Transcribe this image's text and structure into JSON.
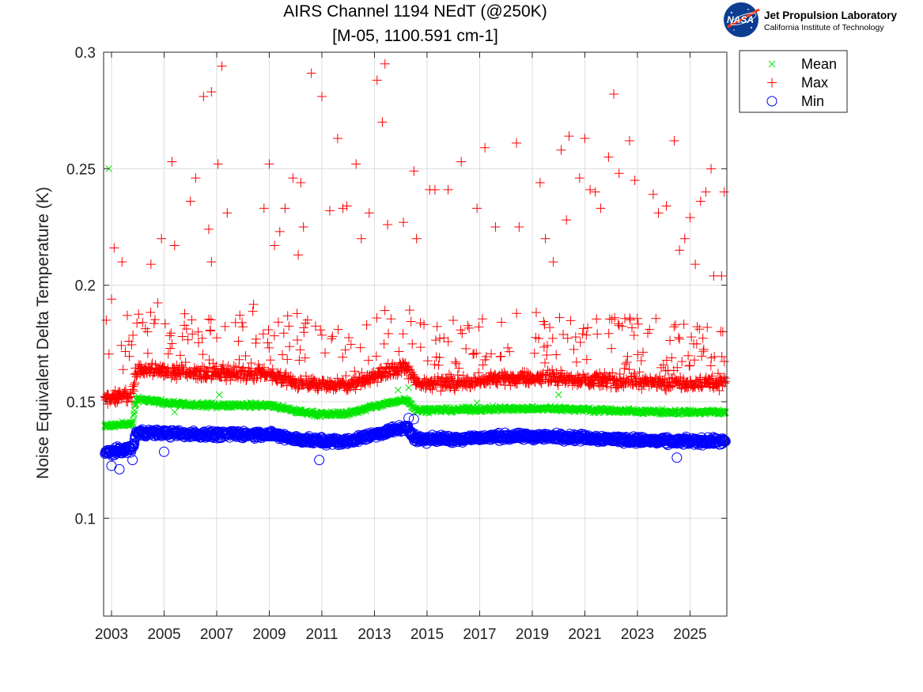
{
  "chart_data": {
    "type": "scatter",
    "title": [
      "AIRS Channel 1194 NEdT (@250K)",
      "[M-05, 1100.591 cm-1]"
    ],
    "xlabel": "",
    "ylabel": "Noise Equivalent Delta Temperature (K)",
    "xlim": [
      2002.7,
      2026.4
    ],
    "ylim": [
      0.058,
      0.3
    ],
    "xticks": [
      2003,
      2005,
      2007,
      2009,
      2011,
      2013,
      2015,
      2017,
      2019,
      2021,
      2023,
      2025
    ],
    "xtick_labels": [
      "2003",
      "2005",
      "2007",
      "2009",
      "2011",
      "2013",
      "2015",
      "2017",
      "2019",
      "2021",
      "2023",
      "2025"
    ],
    "yticks": [
      0.1,
      0.15,
      0.2,
      0.25,
      0.3
    ],
    "ytick_labels": [
      "0.1",
      "0.15",
      "0.2",
      "0.25",
      "0.3"
    ],
    "grid": true,
    "legend_position": "outside top-right",
    "series": [
      {
        "name": "Mean",
        "marker": "x",
        "color": "#00e600",
        "baseline": [
          [
            2002.7,
            0.1395
          ],
          [
            2003.8,
            0.1405
          ],
          [
            2003.95,
            0.151
          ],
          [
            2006.0,
            0.1485
          ],
          [
            2009.0,
            0.1485
          ],
          [
            2010.0,
            0.146
          ],
          [
            2011.0,
            0.1445
          ],
          [
            2012.0,
            0.145
          ],
          [
            2013.0,
            0.148
          ],
          [
            2014.2,
            0.151
          ],
          [
            2014.6,
            0.1465
          ],
          [
            2016.0,
            0.1465
          ],
          [
            2018.0,
            0.147
          ],
          [
            2020.0,
            0.147
          ],
          [
            2022.0,
            0.1462
          ],
          [
            2024.0,
            0.1455
          ],
          [
            2026.4,
            0.1455
          ]
        ],
        "spread": 0.0015,
        "outliers": [
          [
            2002.9,
            0.25
          ],
          [
            2005.4,
            0.1455
          ],
          [
            2007.1,
            0.153
          ],
          [
            2013.9,
            0.155
          ],
          [
            2014.3,
            0.156
          ],
          [
            2016.9,
            0.1495
          ],
          [
            2020.0,
            0.153
          ]
        ]
      },
      {
        "name": "Max",
        "marker": "+",
        "color": "#ff0000",
        "baseline": [
          [
            2002.7,
            0.151
          ],
          [
            2003.8,
            0.153
          ],
          [
            2003.95,
            0.164
          ],
          [
            2006.0,
            0.162
          ],
          [
            2009.0,
            0.162
          ],
          [
            2010.0,
            0.158
          ],
          [
            2011.0,
            0.157
          ],
          [
            2012.0,
            0.157
          ],
          [
            2013.0,
            0.161
          ],
          [
            2014.2,
            0.165
          ],
          [
            2014.6,
            0.158
          ],
          [
            2016.0,
            0.158
          ],
          [
            2018.0,
            0.16
          ],
          [
            2020.0,
            0.16
          ],
          [
            2022.0,
            0.159
          ],
          [
            2024.0,
            0.158
          ],
          [
            2026.4,
            0.158
          ]
        ],
        "spread": 0.004,
        "outliers": [
          [
            2002.8,
            0.185
          ],
          [
            2003.0,
            0.194
          ],
          [
            2003.1,
            0.216
          ],
          [
            2003.4,
            0.21
          ],
          [
            2003.6,
            0.187
          ],
          [
            2004.5,
            0.209
          ],
          [
            2004.9,
            0.22
          ],
          [
            2005.3,
            0.253
          ],
          [
            2005.4,
            0.217
          ],
          [
            2006.0,
            0.236
          ],
          [
            2006.2,
            0.246
          ],
          [
            2006.5,
            0.281
          ],
          [
            2006.8,
            0.283
          ],
          [
            2006.7,
            0.224
          ],
          [
            2006.8,
            0.21
          ],
          [
            2007.05,
            0.252
          ],
          [
            2007.2,
            0.294
          ],
          [
            2007.4,
            0.231
          ],
          [
            2008.8,
            0.233
          ],
          [
            2009.0,
            0.252
          ],
          [
            2009.2,
            0.217
          ],
          [
            2009.4,
            0.223
          ],
          [
            2009.6,
            0.233
          ],
          [
            2009.9,
            0.246
          ],
          [
            2010.2,
            0.244
          ],
          [
            2010.1,
            0.213
          ],
          [
            2010.3,
            0.225
          ],
          [
            2010.6,
            0.291
          ],
          [
            2011.0,
            0.281
          ],
          [
            2011.3,
            0.232
          ],
          [
            2011.6,
            0.263
          ],
          [
            2011.8,
            0.233
          ],
          [
            2011.95,
            0.234
          ],
          [
            2012.3,
            0.252
          ],
          [
            2012.5,
            0.22
          ],
          [
            2012.8,
            0.231
          ],
          [
            2013.1,
            0.288
          ],
          [
            2013.3,
            0.27
          ],
          [
            2013.4,
            0.295
          ],
          [
            2013.5,
            0.226
          ],
          [
            2014.1,
            0.227
          ],
          [
            2014.5,
            0.249
          ],
          [
            2014.6,
            0.22
          ],
          [
            2015.1,
            0.241
          ],
          [
            2015.3,
            0.241
          ],
          [
            2015.8,
            0.241
          ],
          [
            2016.3,
            0.253
          ],
          [
            2016.9,
            0.233
          ],
          [
            2017.2,
            0.259
          ],
          [
            2017.6,
            0.225
          ],
          [
            2018.4,
            0.261
          ],
          [
            2018.5,
            0.225
          ],
          [
            2019.3,
            0.244
          ],
          [
            2019.5,
            0.22
          ],
          [
            2019.8,
            0.21
          ],
          [
            2020.1,
            0.258
          ],
          [
            2020.3,
            0.228
          ],
          [
            2020.4,
            0.264
          ],
          [
            2020.8,
            0.246
          ],
          [
            2021.0,
            0.263
          ],
          [
            2021.2,
            0.241
          ],
          [
            2021.4,
            0.24
          ],
          [
            2021.6,
            0.233
          ],
          [
            2021.9,
            0.255
          ],
          [
            2022.1,
            0.282
          ],
          [
            2022.3,
            0.248
          ],
          [
            2022.7,
            0.262
          ],
          [
            2022.9,
            0.245
          ],
          [
            2023.6,
            0.239
          ],
          [
            2023.8,
            0.231
          ],
          [
            2024.1,
            0.234
          ],
          [
            2024.4,
            0.262
          ],
          [
            2024.6,
            0.215
          ],
          [
            2024.8,
            0.22
          ],
          [
            2025.0,
            0.229
          ],
          [
            2025.2,
            0.209
          ],
          [
            2025.4,
            0.236
          ],
          [
            2025.6,
            0.24
          ],
          [
            2025.8,
            0.25
          ],
          [
            2025.9,
            0.204
          ],
          [
            2026.2,
            0.204
          ],
          [
            2026.3,
            0.24
          ]
        ]
      },
      {
        "name": "Min",
        "marker": "o",
        "color": "#0000ff",
        "baseline": [
          [
            2002.7,
            0.128
          ],
          [
            2003.8,
            0.13
          ],
          [
            2003.95,
            0.137
          ],
          [
            2006.0,
            0.136
          ],
          [
            2009.0,
            0.136
          ],
          [
            2010.0,
            0.134
          ],
          [
            2011.0,
            0.133
          ],
          [
            2012.0,
            0.133
          ],
          [
            2013.0,
            0.136
          ],
          [
            2014.2,
            0.139
          ],
          [
            2014.6,
            0.134
          ],
          [
            2016.0,
            0.134
          ],
          [
            2018.0,
            0.135
          ],
          [
            2020.0,
            0.135
          ],
          [
            2022.0,
            0.134
          ],
          [
            2024.0,
            0.133
          ],
          [
            2026.4,
            0.133
          ]
        ],
        "spread": 0.0022,
        "outliers": [
          [
            2003.0,
            0.1225
          ],
          [
            2003.3,
            0.121
          ],
          [
            2003.8,
            0.125
          ],
          [
            2005.0,
            0.1285
          ],
          [
            2010.9,
            0.125
          ],
          [
            2014.3,
            0.143
          ],
          [
            2014.5,
            0.1425
          ],
          [
            2024.5,
            0.126
          ]
        ]
      }
    ]
  },
  "legend": {
    "items": [
      {
        "label": "Mean",
        "marker": "x",
        "color": "#00e600"
      },
      {
        "label": "Max",
        "marker": "+",
        "color": "#ff0000"
      },
      {
        "label": "Min",
        "marker": "o",
        "color": "#0000ff"
      }
    ]
  },
  "logo": {
    "emblem_text": "NASA",
    "title": "Jet Propulsion Laboratory",
    "subtitle": "California Institute of Technology"
  }
}
